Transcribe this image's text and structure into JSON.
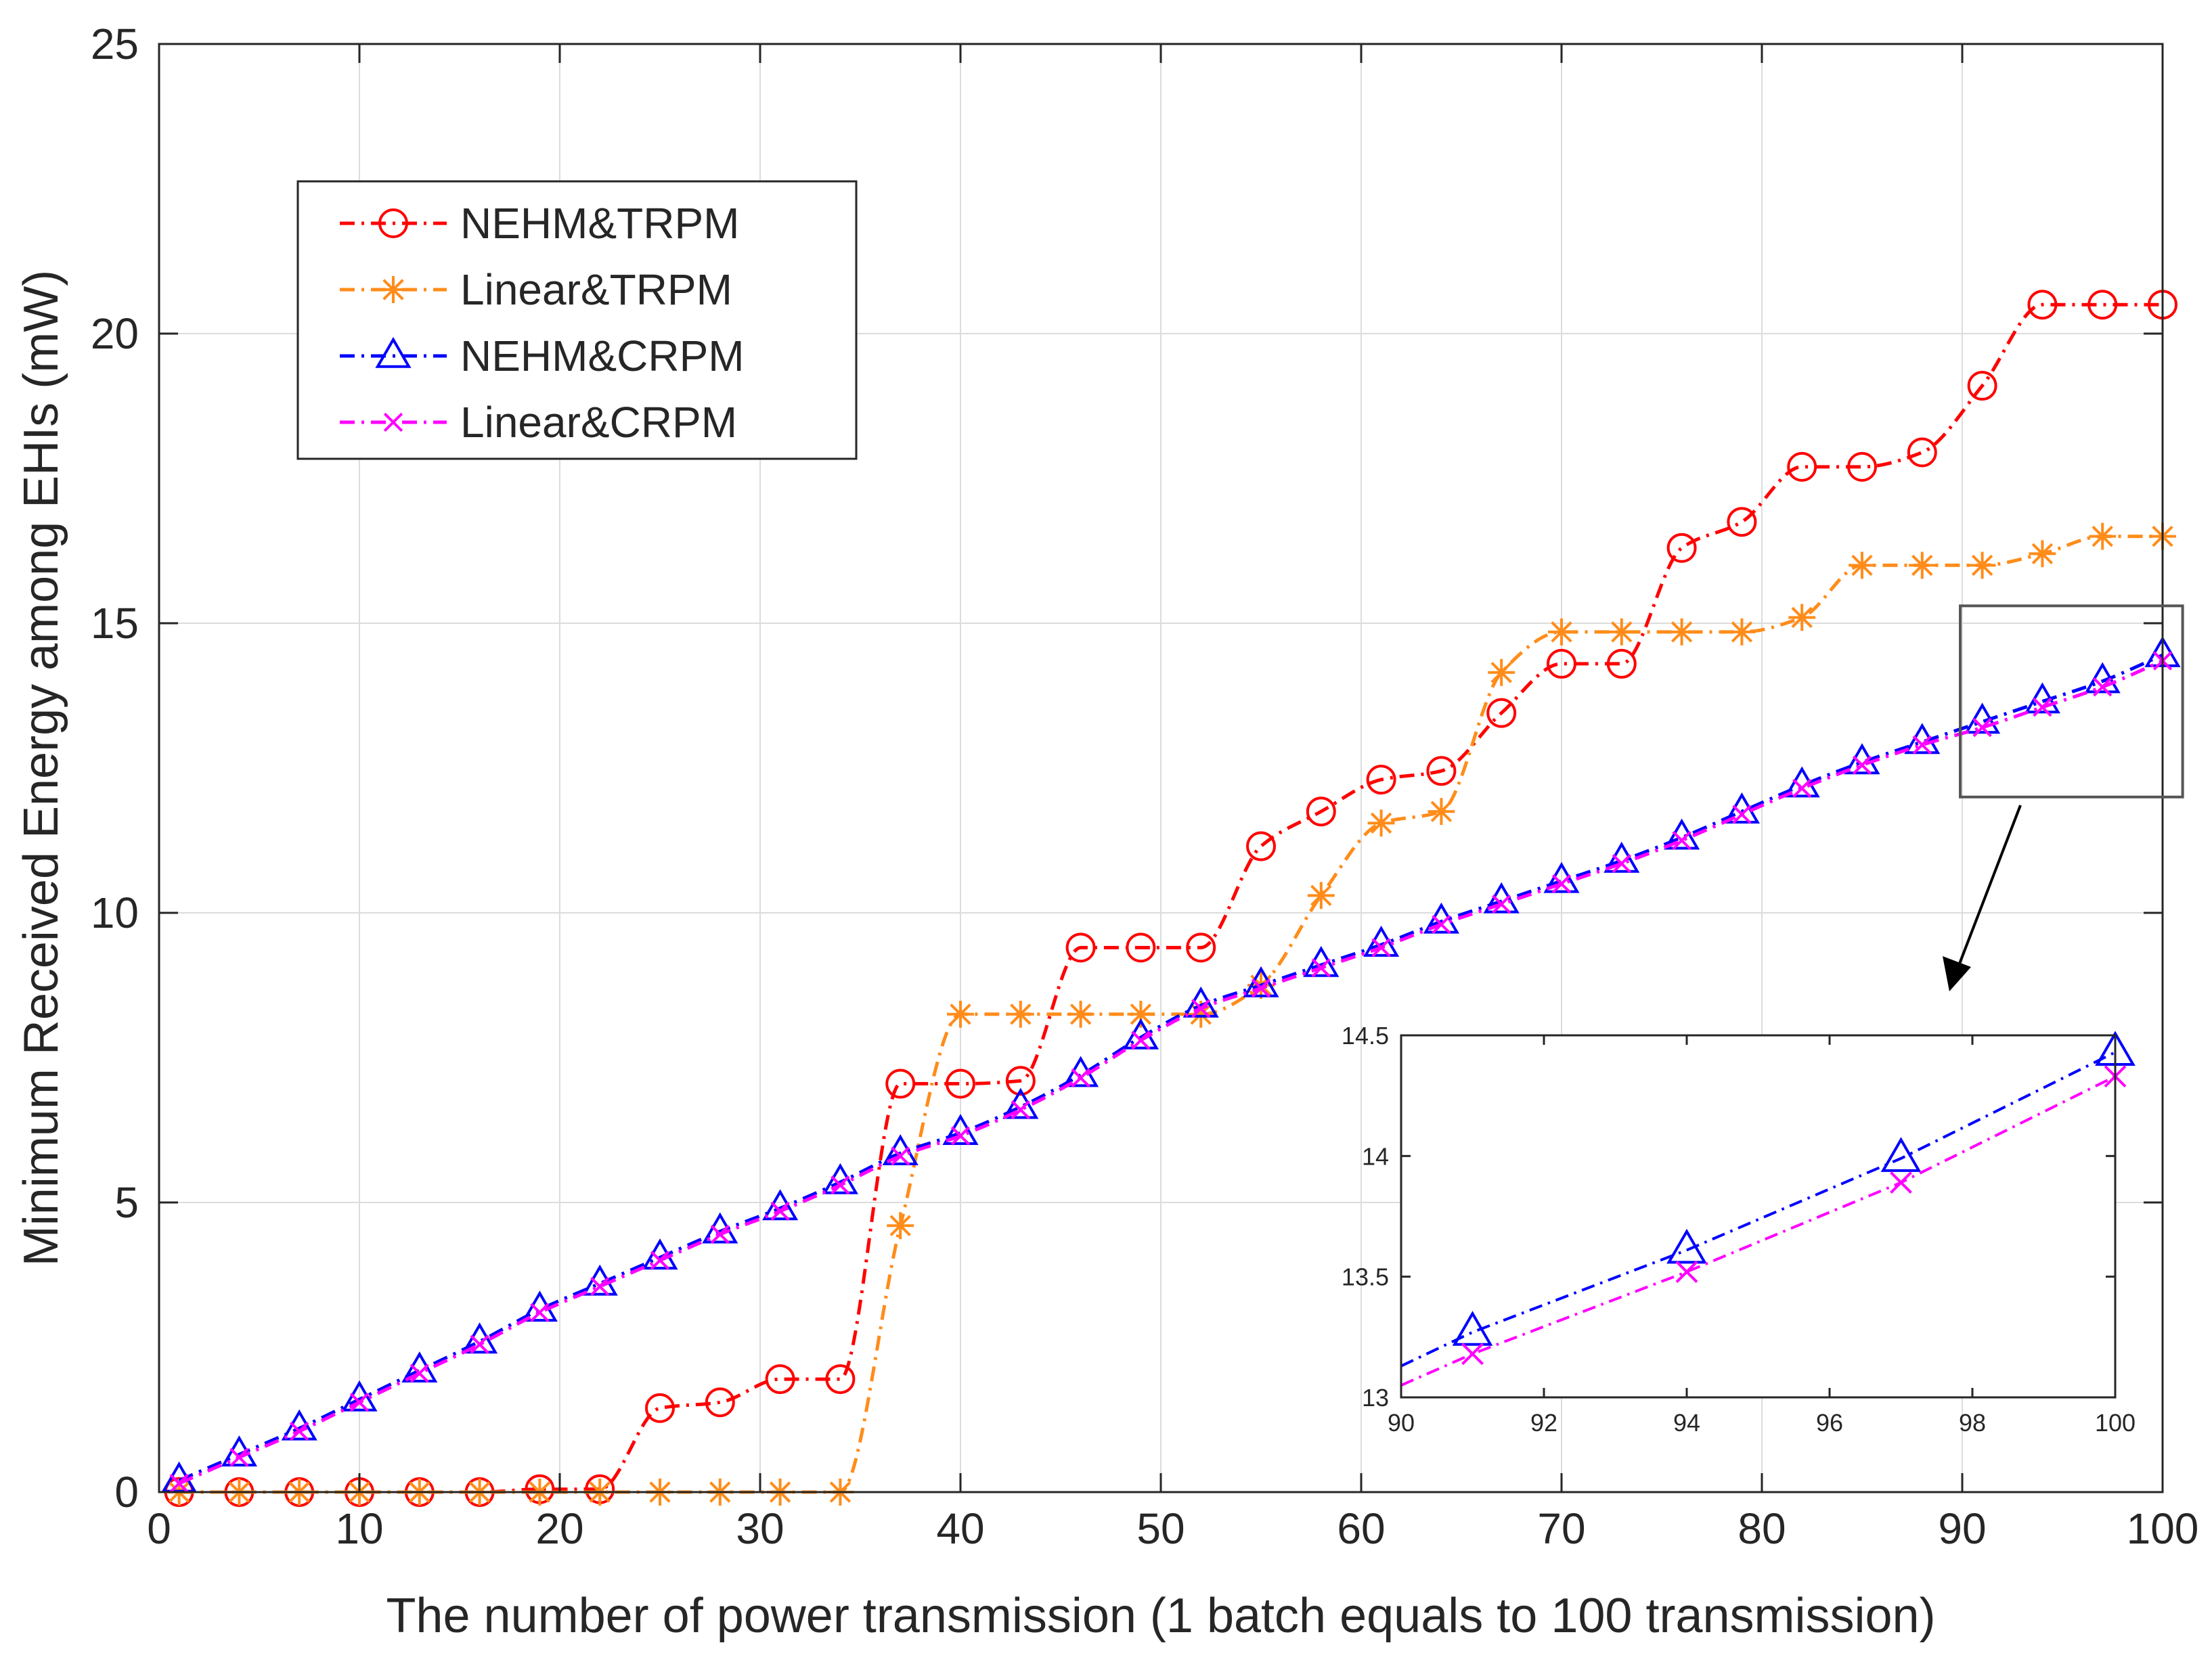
{
  "chart_data": [
    {
      "id": "main",
      "type": "line",
      "title": "",
      "xlabel": "The number of power transmission (1 batch equals to 100 transmission)",
      "ylabel": "Minimum Received Energy among EHIs (mW)",
      "xlim": [
        0,
        100
      ],
      "ylim": [
        0,
        25
      ],
      "xticks": [
        0,
        10,
        20,
        30,
        40,
        50,
        60,
        70,
        80,
        90,
        100
      ],
      "yticks": [
        0,
        5,
        10,
        15,
        20,
        25
      ],
      "grid": true,
      "legend_position": "top-left",
      "series": [
        {
          "name": "NEHM&TRPM",
          "color": "#ff0000",
          "marker": "circle",
          "line_style": "dash-dot",
          "x": [
            1,
            4,
            7,
            10,
            13,
            16,
            19,
            22,
            25,
            28,
            31,
            34,
            37,
            40,
            43,
            46,
            49,
            52,
            55,
            58,
            61,
            64,
            67,
            70,
            73,
            76,
            79,
            82,
            85,
            88,
            91,
            94,
            97,
            100
          ],
          "y": [
            0,
            0,
            0,
            0,
            0,
            0,
            0.05,
            0.05,
            1.45,
            1.55,
            1.95,
            1.95,
            7.05,
            7.05,
            7.1,
            9.4,
            9.4,
            9.4,
            11.15,
            11.75,
            12.3,
            12.45,
            13.45,
            14.3,
            14.3,
            16.3,
            16.75,
            17.7,
            17.7,
            17.95,
            19.1,
            20.5,
            20.5,
            20.5
          ]
        },
        {
          "name": "Linear&TRPM",
          "color": "#ff8c1a",
          "marker": "asterisk",
          "line_style": "dash-dot",
          "x": [
            1,
            4,
            7,
            10,
            13,
            16,
            19,
            22,
            25,
            28,
            31,
            34,
            37,
            40,
            43,
            46,
            49,
            52,
            55,
            58,
            61,
            64,
            67,
            70,
            73,
            76,
            79,
            82,
            85,
            88,
            91,
            94,
            97,
            100
          ],
          "y": [
            0,
            0,
            0,
            0,
            0,
            0,
            0,
            0,
            0,
            0,
            0,
            0,
            4.6,
            8.25,
            8.25,
            8.25,
            8.25,
            8.25,
            8.75,
            10.3,
            11.55,
            11.75,
            14.15,
            14.85,
            14.85,
            14.85,
            14.85,
            15.1,
            16,
            16,
            16,
            16.2,
            16.5,
            16.5
          ]
        },
        {
          "name": "NEHM&CRPM",
          "color": "#0000ff",
          "marker": "triangle",
          "line_style": "dash-dot",
          "x": [
            1,
            4,
            7,
            10,
            13,
            16,
            19,
            22,
            25,
            28,
            31,
            34,
            37,
            40,
            43,
            46,
            49,
            52,
            55,
            58,
            61,
            64,
            67,
            70,
            73,
            76,
            79,
            82,
            85,
            88,
            91,
            94,
            97,
            100
          ],
          "y": [
            0.2,
            0.65,
            1.1,
            1.6,
            2.1,
            2.6,
            3.15,
            3.6,
            4.05,
            4.5,
            4.9,
            5.35,
            5.85,
            6.2,
            6.65,
            7.2,
            7.85,
            8.4,
            8.75,
            9.1,
            9.45,
            9.85,
            10.2,
            10.55,
            10.9,
            11.3,
            11.75,
            12.2,
            12.6,
            12.95,
            13.3,
            13.65,
            14.0,
            14.45
          ]
        },
        {
          "name": "Linear&CRPM",
          "color": "#ff00ff",
          "marker": "x",
          "line_style": "dash-dot",
          "x": [
            1,
            4,
            7,
            10,
            13,
            16,
            19,
            22,
            25,
            28,
            31,
            34,
            37,
            40,
            43,
            46,
            49,
            52,
            55,
            58,
            61,
            64,
            67,
            70,
            73,
            76,
            79,
            82,
            85,
            88,
            91,
            94,
            97,
            100
          ],
          "y": [
            0.15,
            0.6,
            1.05,
            1.55,
            2.05,
            2.55,
            3.1,
            3.55,
            4.0,
            4.45,
            4.85,
            5.3,
            5.8,
            6.15,
            6.6,
            7.15,
            7.8,
            8.35,
            8.7,
            9.05,
            9.4,
            9.8,
            10.15,
            10.5,
            10.85,
            11.25,
            11.7,
            12.15,
            12.55,
            12.9,
            13.2,
            13.55,
            13.9,
            14.35
          ]
        }
      ],
      "zoom_box": {
        "x": [
          90,
          100
        ],
        "y": [
          12,
          15.3
        ]
      }
    },
    {
      "id": "inset",
      "type": "line",
      "title": "",
      "xlabel": "",
      "ylabel": "",
      "xlim": [
        90,
        100
      ],
      "ylim": [
        13,
        14.5
      ],
      "xticks": [
        90,
        92,
        94,
        96,
        98,
        100
      ],
      "yticks": [
        13,
        13.5,
        14,
        14.5
      ],
      "grid": false,
      "series": [
        {
          "name": "NEHM&CRPM",
          "color": "#0000ff",
          "marker": "triangle",
          "line_style": "dash-dot",
          "x": [
            90,
            91,
            94,
            97,
            100
          ],
          "y": [
            13.13,
            13.27,
            13.61,
            13.99,
            14.43
          ],
          "marker_x": [
            91,
            94,
            97,
            100
          ],
          "marker_y": [
            13.27,
            13.61,
            13.99,
            14.43
          ]
        },
        {
          "name": "Linear&CRPM",
          "color": "#ff00ff",
          "marker": "x",
          "line_style": "dash-dot",
          "x": [
            90,
            91,
            94,
            97,
            100
          ],
          "y": [
            13.05,
            13.18,
            13.52,
            13.89,
            14.33
          ],
          "marker_x": [
            91,
            94,
            97,
            100
          ],
          "marker_y": [
            13.18,
            13.52,
            13.89,
            14.33
          ]
        }
      ]
    }
  ]
}
